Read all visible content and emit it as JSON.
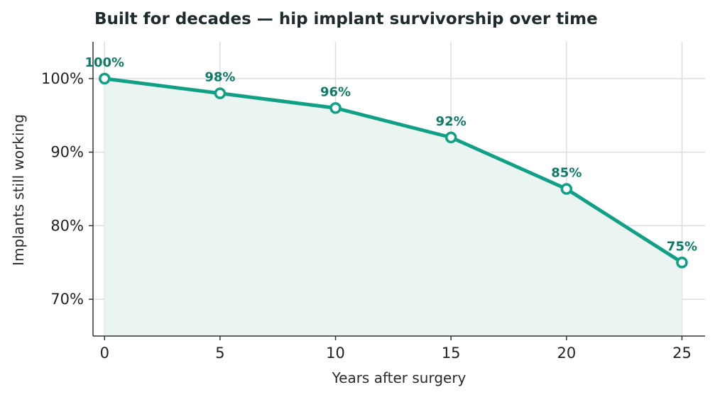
{
  "chart_data": {
    "type": "line",
    "title": "Built for decades — hip implant survivorship over time",
    "xlabel": "Years after surgery",
    "ylabel": "Implants still working",
    "x": [
      0,
      5,
      10,
      15,
      20,
      25
    ],
    "series": [
      {
        "values": [
          100,
          98,
          96,
          92,
          85,
          75
        ],
        "labels": [
          "100%",
          "98%",
          "96%",
          "92%",
          "85%",
          "75%"
        ]
      }
    ],
    "xlim": [
      -0.5,
      26
    ],
    "ylim": [
      65,
      105
    ],
    "xticks": [
      0,
      5,
      10,
      15,
      20,
      25
    ],
    "xtick_labels": [
      "0",
      "5",
      "10",
      "15",
      "20",
      "25"
    ],
    "yticks": [
      70,
      80,
      90,
      100
    ],
    "ytick_labels": [
      "70%",
      "80%",
      "90%",
      "100%"
    ],
    "grid": true,
    "area_fill": true,
    "colors": {
      "line": "#10a085",
      "fill": "#eaf5f2",
      "label": "#0f7a66",
      "marker_fill": "#ffffff"
    }
  }
}
